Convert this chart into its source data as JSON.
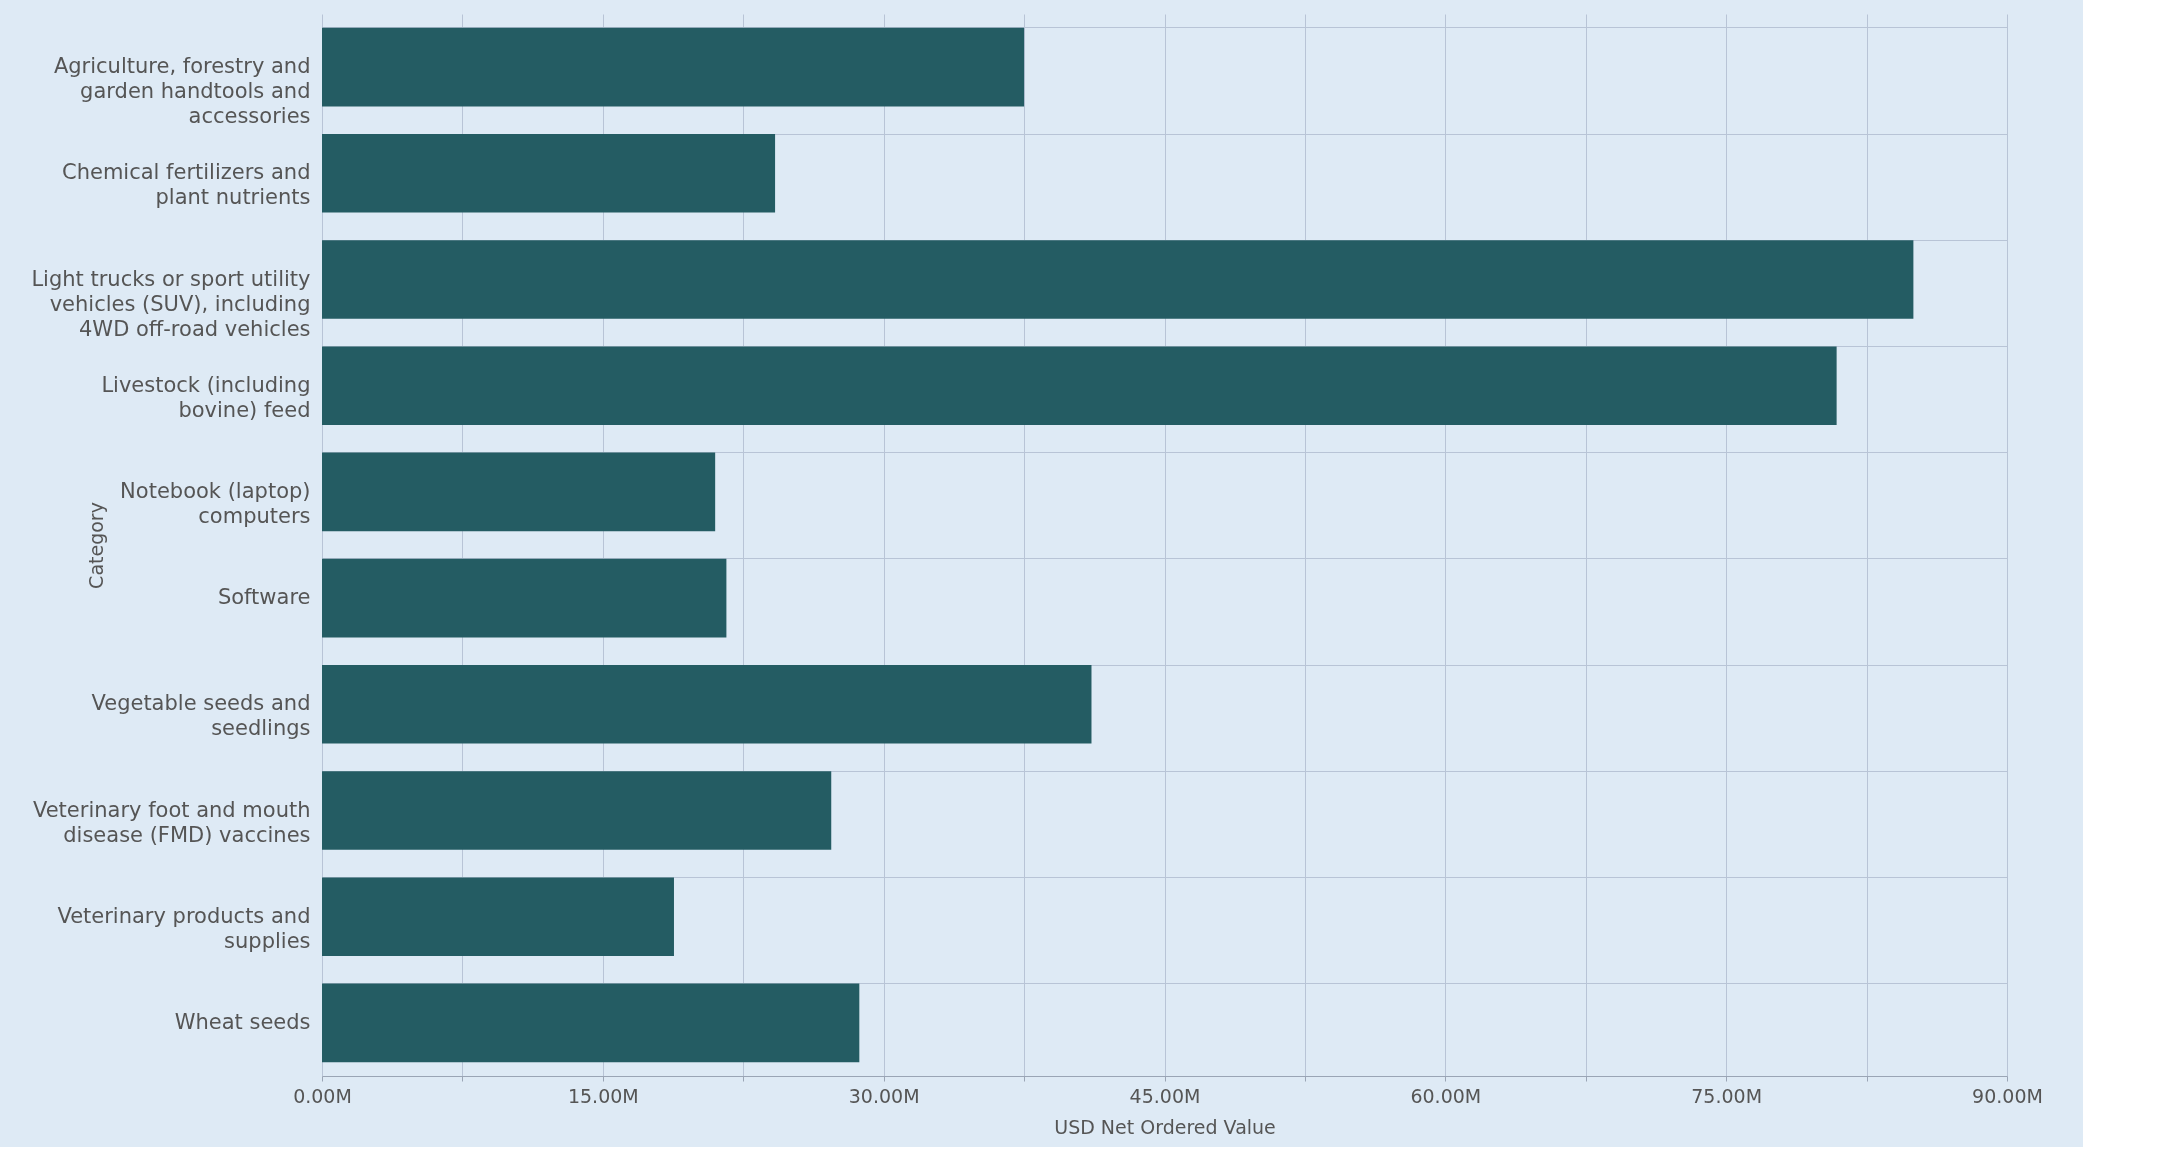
{
  "chart_data": {
    "type": "bar",
    "orientation": "horizontal",
    "xlabel": "USD Net Ordered Value",
    "ylabel": "Category",
    "categories": [
      "Agriculture, forestry and\ngarden handtools and\naccessories",
      "Chemical fertilizers and\nplant nutrients",
      "Light trucks or sport utility\nvehicles (SUV), including\n4WD off-road vehicles",
      "Livestock (including\nbovine) feed",
      "Notebook (laptop)\ncomputers",
      "Software",
      "Vegetable seeds and\nseedlings",
      "Veterinary foot and mouth\ndisease (FMD) vaccines",
      "Veterinary products and\nsupplies",
      "Wheat seeds"
    ],
    "values": [
      37.5,
      24.2,
      85.0,
      80.9,
      21.0,
      21.6,
      41.1,
      27.2,
      18.8,
      28.7
    ],
    "color": "#245c63",
    "xlim": [
      0,
      90
    ],
    "xticks": [
      {
        "value": 0,
        "label": "0.00M"
      },
      {
        "value": 7.5,
        "label": null
      },
      {
        "value": 15,
        "label": "15.00M"
      },
      {
        "value": 22.5,
        "label": null
      },
      {
        "value": 30,
        "label": "30.00M"
      },
      {
        "value": 37.5,
        "label": null
      },
      {
        "value": 45,
        "label": "45.00M"
      },
      {
        "value": 52.5,
        "label": null
      },
      {
        "value": 60,
        "label": "60.00M"
      },
      {
        "value": 67.5,
        "label": null
      },
      {
        "value": 75,
        "label": "75.00M"
      },
      {
        "value": 82.5,
        "label": null
      },
      {
        "value": 90,
        "label": "90.00M"
      }
    ],
    "grid": true
  }
}
